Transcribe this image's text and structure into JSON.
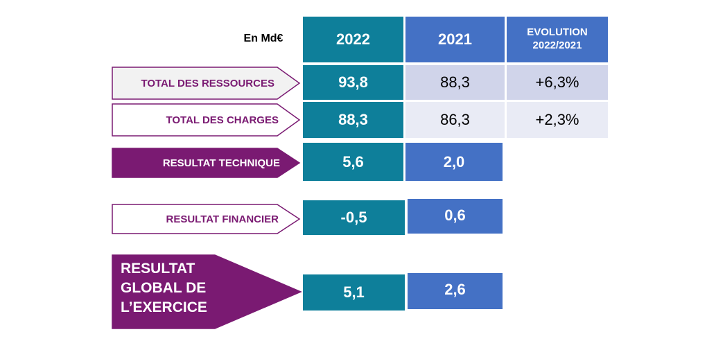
{
  "unit_label": "En Md€",
  "columns": {
    "year_2022": "2022",
    "year_2021": "2021",
    "evolution_line1": "EVOLUTION",
    "evolution_line2": "2022/2021"
  },
  "rows": [
    {
      "label": "TOTAL DES RESSOURCES",
      "v2022": "93,8",
      "v2021": "88,3",
      "evolution": "+6,3%"
    },
    {
      "label": "TOTAL DES CHARGES",
      "v2022": "88,3",
      "v2021": "86,3",
      "evolution": "+2,3%"
    },
    {
      "label": "RESULTAT TECHNIQUE",
      "v2022": "5,6",
      "v2021": "2,0"
    },
    {
      "label": "RESULTAT FINANCIER",
      "v2022": "-0,5",
      "v2021": "0,6"
    },
    {
      "label_lines": [
        "RESULTAT",
        "GLOBAL DE",
        "L’EXERCICE"
      ],
      "v2022": "5,1",
      "v2021": "2,6"
    }
  ],
  "colors": {
    "teal": "#0e7f9a",
    "blue": "#4471c5",
    "purple": "#7a1a72",
    "light_row": "#d0d4ea",
    "pale_row": "#e9ebf5"
  },
  "chart_data": {
    "type": "table",
    "unit": "En Md€",
    "columns": [
      "2022",
      "2021",
      "EVOLUTION 2022/2021"
    ],
    "rows": [
      {
        "name": "TOTAL DES RESSOURCES",
        "values": [
          93.8,
          88.3
        ],
        "evolution": "+6,3%"
      },
      {
        "name": "TOTAL DES CHARGES",
        "values": [
          88.3,
          86.3
        ],
        "evolution": "+2,3%"
      },
      {
        "name": "RESULTAT TECHNIQUE",
        "values": [
          5.6,
          2.0
        ]
      },
      {
        "name": "RESULTAT FINANCIER",
        "values": [
          -0.5,
          0.6
        ]
      },
      {
        "name": "RESULTAT GLOBAL DE L’EXERCICE",
        "values": [
          5.1,
          2.6
        ]
      }
    ]
  }
}
